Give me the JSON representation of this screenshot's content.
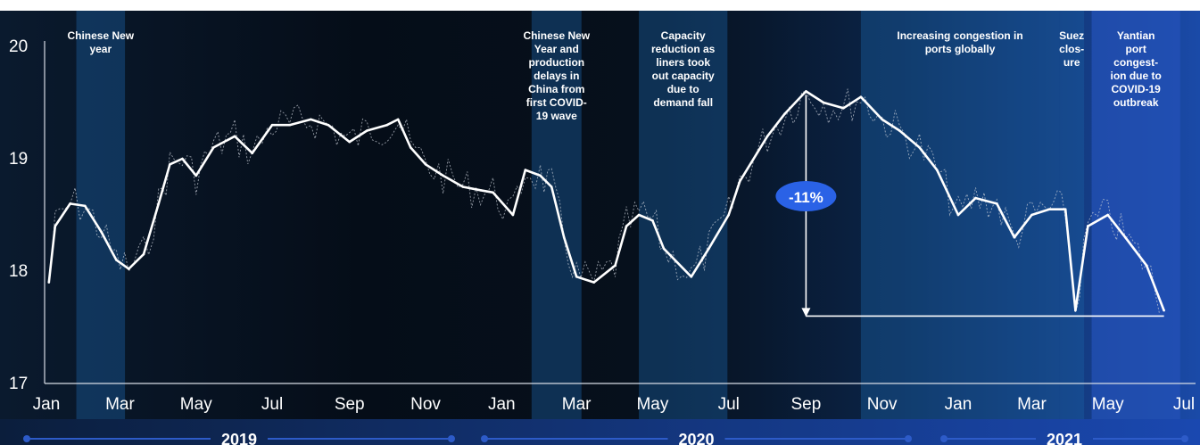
{
  "chart_data": {
    "type": "line",
    "title": "",
    "xlabel": "",
    "ylabel": "",
    "ylim": [
      17,
      20
    ],
    "yticks": [
      "17",
      "18",
      "19",
      "20"
    ],
    "x_ticks": [
      "Jan",
      "Mar",
      "May",
      "Jul",
      "Sep",
      "Nov",
      "Jan",
      "Mar",
      "May",
      "Jul",
      "Sep",
      "Nov",
      "Jan",
      "Mar",
      "May",
      "Jul"
    ],
    "years": [
      "2019",
      "2020",
      "2021"
    ],
    "series": [
      {
        "style": "smoothed (solid white)",
        "points": [
          [
            "2019-01-03",
            17.9
          ],
          [
            "2019-01-08",
            18.4
          ],
          [
            "2019-01-20",
            18.6
          ],
          [
            "2019-02-01",
            18.58
          ],
          [
            "2019-02-14",
            18.35
          ],
          [
            "2019-02-26",
            18.1
          ],
          [
            "2019-03-08",
            18.02
          ],
          [
            "2019-03-20",
            18.15
          ],
          [
            "2019-04-01",
            18.6
          ],
          [
            "2019-04-10",
            18.95
          ],
          [
            "2019-04-20",
            19.0
          ],
          [
            "2019-05-01",
            18.85
          ],
          [
            "2019-05-15",
            19.1
          ],
          [
            "2019-06-01",
            19.2
          ],
          [
            "2019-06-15",
            19.05
          ],
          [
            "2019-07-01",
            19.3
          ],
          [
            "2019-07-15",
            19.3
          ],
          [
            "2019-08-01",
            19.35
          ],
          [
            "2019-08-15",
            19.3
          ],
          [
            "2019-09-01",
            19.15
          ],
          [
            "2019-09-15",
            19.25
          ],
          [
            "2019-10-01",
            19.3
          ],
          [
            "2019-10-10",
            19.35
          ],
          [
            "2019-10-20",
            19.1
          ],
          [
            "2019-11-01",
            18.95
          ],
          [
            "2019-11-15",
            18.85
          ],
          [
            "2019-12-01",
            18.75
          ],
          [
            "2019-12-15",
            18.72
          ],
          [
            "2019-12-25",
            18.7
          ],
          [
            "2020-01-10",
            18.5
          ],
          [
            "2020-01-20",
            18.9
          ],
          [
            "2020-02-01",
            18.85
          ],
          [
            "2020-02-10",
            18.75
          ],
          [
            "2020-02-20",
            18.3
          ],
          [
            "2020-03-01",
            17.95
          ],
          [
            "2020-03-15",
            17.9
          ],
          [
            "2020-04-01",
            18.05
          ],
          [
            "2020-04-10",
            18.4
          ],
          [
            "2020-04-20",
            18.5
          ],
          [
            "2020-05-01",
            18.45
          ],
          [
            "2020-05-10",
            18.2
          ],
          [
            "2020-06-01",
            17.95
          ],
          [
            "2020-06-15",
            18.2
          ],
          [
            "2020-07-01",
            18.5
          ],
          [
            "2020-07-10",
            18.8
          ],
          [
            "2020-08-01",
            19.2
          ],
          [
            "2020-08-15",
            19.4
          ],
          [
            "2020-09-01",
            19.6
          ],
          [
            "2020-09-15",
            19.5
          ],
          [
            "2020-10-01",
            19.45
          ],
          [
            "2020-10-15",
            19.55
          ],
          [
            "2020-11-01",
            19.35
          ],
          [
            "2020-11-15",
            19.25
          ],
          [
            "2020-12-01",
            19.1
          ],
          [
            "2020-12-15",
            18.9
          ],
          [
            "2021-01-01",
            18.5
          ],
          [
            "2021-01-15",
            18.65
          ],
          [
            "2021-02-01",
            18.6
          ],
          [
            "2021-02-15",
            18.3
          ],
          [
            "2021-03-01",
            18.5
          ],
          [
            "2021-03-15",
            18.55
          ],
          [
            "2021-03-28",
            18.55
          ],
          [
            "2021-04-05",
            17.65
          ],
          [
            "2021-04-15",
            18.4
          ],
          [
            "2021-05-01",
            18.5
          ],
          [
            "2021-05-15",
            18.3
          ],
          [
            "2021-06-01",
            18.05
          ],
          [
            "2021-06-15",
            17.65
          ]
        ]
      }
    ],
    "shaded_periods": [
      {
        "start": "2019-01-25",
        "end": "2019-03-05",
        "label": "Chinese New year"
      },
      {
        "start": "2020-01-25",
        "end": "2020-03-05",
        "label": "Chinese New Year and production delays in China from first COVID-19 wave"
      },
      {
        "start": "2020-04-20",
        "end": "2020-06-30",
        "label": "Capacity reduction as liners took out capacity due to demand fall"
      },
      {
        "start": "2020-10-15",
        "end": "2021-03-23",
        "label": "Increasing congestion in ports globally"
      },
      {
        "start": "2021-03-23",
        "end": "2021-04-12",
        "label": "Suez clos- ure"
      },
      {
        "start": "2021-04-18",
        "end": "2021-06-28",
        "label": "Yantian port congest- ion due to COVID-19 outbreak"
      }
    ],
    "annotation": {
      "label": "-11%",
      "from": [
        "2020-09-01",
        19.6
      ],
      "to": [
        "2021-06-15",
        17.6
      ]
    }
  },
  "colors": {
    "background_dark": "#06101c",
    "band_fill": "#1a5fa3",
    "band_right": "#2452b8",
    "line": "#ffffff",
    "badge": "#2a62e6",
    "year_axis": "#2d5bc8"
  }
}
